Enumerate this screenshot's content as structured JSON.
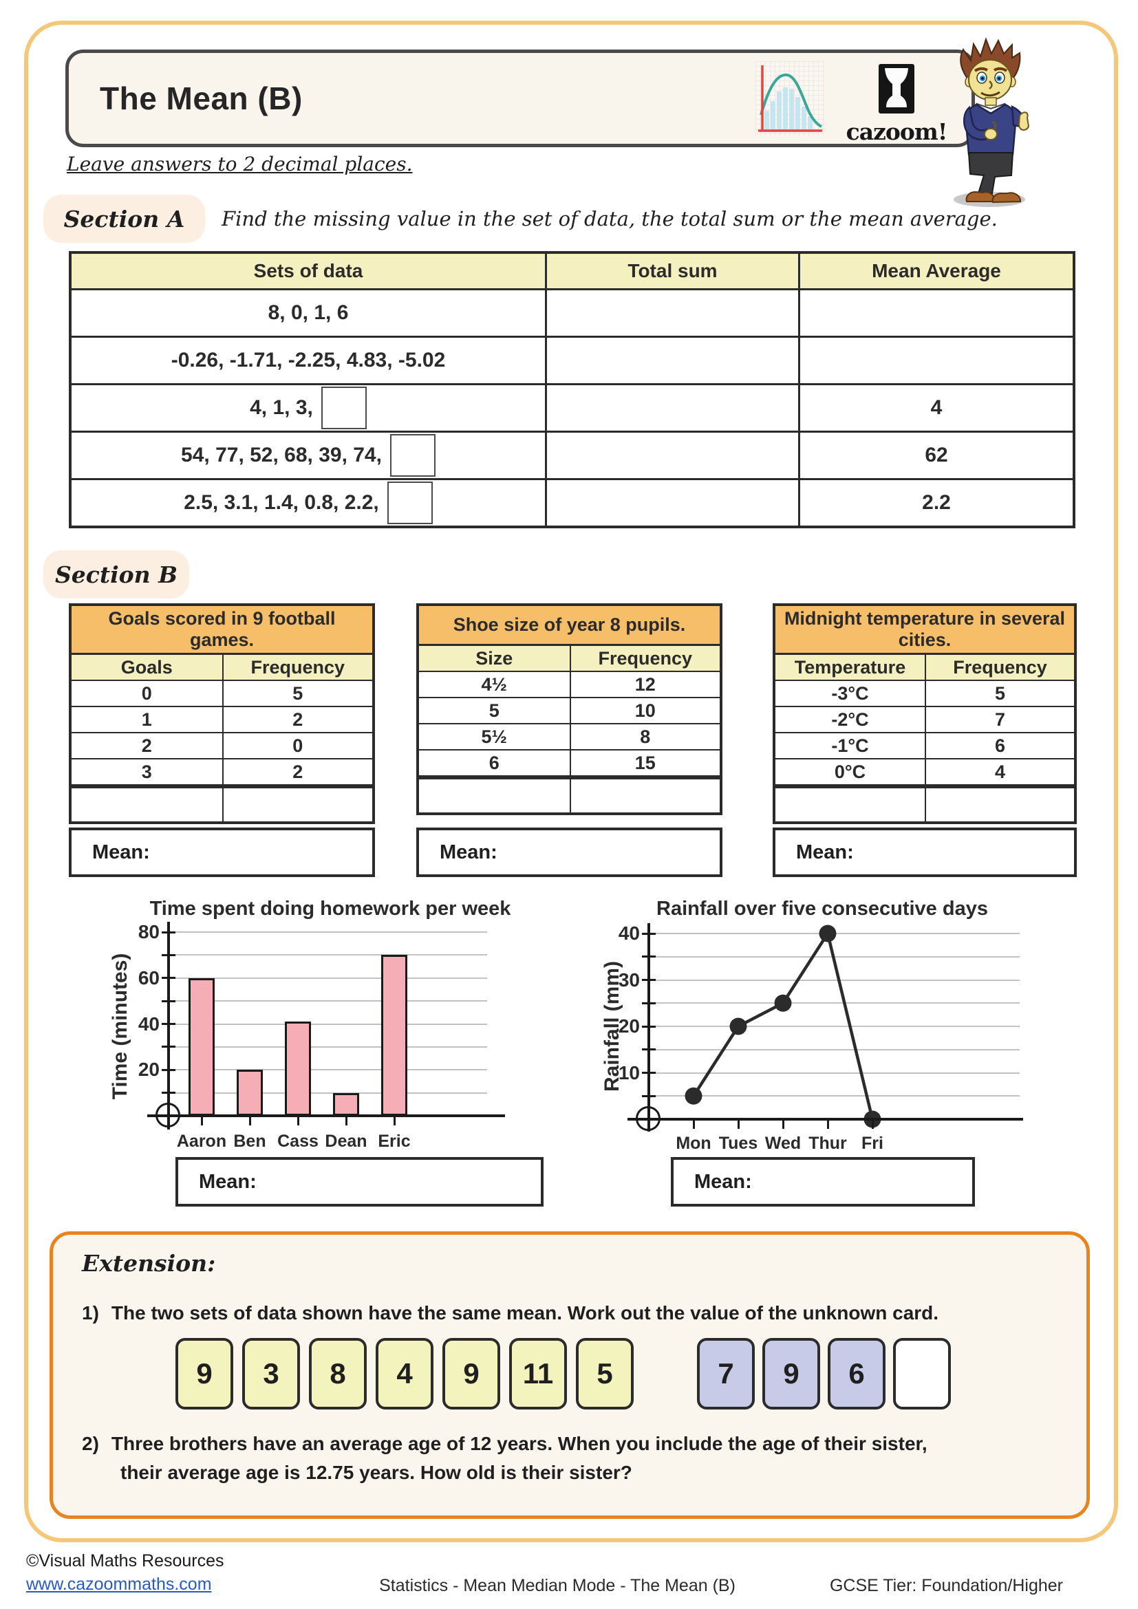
{
  "header": {
    "title": "The Mean (B)",
    "logo_text": "cazoom!"
  },
  "note": "Leave answers to 2 decimal places.",
  "section_a": {
    "label": "Section A",
    "instruction": "Find the missing value in the set of data, the total sum or the mean average.",
    "columns": [
      "Sets of data",
      "Total sum",
      "Mean Average"
    ],
    "rows": [
      {
        "set": "8, 0, 1, 6",
        "answer_box": false,
        "total_sum": "",
        "mean": ""
      },
      {
        "set": "-0.26, -1.71, -2.25, 4.83, -5.02",
        "answer_box": false,
        "total_sum": "",
        "mean": ""
      },
      {
        "set": "4, 1, 3,",
        "answer_box": true,
        "total_sum": "",
        "mean": "4"
      },
      {
        "set": "54, 77, 52, 68, 39, 74,",
        "answer_box": true,
        "total_sum": "",
        "mean": "62"
      },
      {
        "set": "2.5, 3.1, 1.4, 0.8, 2.2,",
        "answer_box": true,
        "total_sum": "",
        "mean": "2.2"
      }
    ]
  },
  "section_b": {
    "label": "Section B",
    "mean_label": "Mean:",
    "tables": [
      {
        "title": "Goals scored in 9 football games.",
        "columns": [
          "Goals",
          "Frequency"
        ],
        "rows": [
          [
            "0",
            "5"
          ],
          [
            "1",
            "2"
          ],
          [
            "2",
            "0"
          ],
          [
            "3",
            "2"
          ]
        ]
      },
      {
        "title": "Shoe size of year 8 pupils.",
        "columns": [
          "Size",
          "Frequency"
        ],
        "rows": [
          [
            "4½",
            "12"
          ],
          [
            "5",
            "10"
          ],
          [
            "5½",
            "8"
          ],
          [
            "6",
            "15"
          ]
        ]
      },
      {
        "title": "Midnight temperature in several cities.",
        "columns": [
          "Temperature",
          "Frequency"
        ],
        "rows": [
          [
            "-3°C",
            "5"
          ],
          [
            "-2°C",
            "7"
          ],
          [
            "-1°C",
            "6"
          ],
          [
            "0°C",
            "4"
          ]
        ]
      }
    ]
  },
  "chart_data": [
    {
      "type": "bar",
      "title": "Time spent doing homework per week",
      "ylabel": "Time (minutes)",
      "categories": [
        "Aaron",
        "Ben",
        "Cass",
        "Dean",
        "Eric"
      ],
      "values": [
        60,
        20,
        41,
        10,
        70
      ],
      "ylim": [
        0,
        80
      ],
      "ytick_step": 10,
      "ytick_labels": [
        20,
        40,
        60,
        80
      ],
      "grid": true,
      "bar_color": "#f5aeb5",
      "mean_label": "Mean:"
    },
    {
      "type": "line",
      "title": "Rainfall over five consecutive days",
      "ylabel": "Rainfall (mm)",
      "x": [
        "Mon",
        "Tues",
        "Wed",
        "Thur",
        "Fri"
      ],
      "values": [
        5,
        20,
        25,
        40,
        0
      ],
      "ylim": [
        0,
        40
      ],
      "ytick_step": 5,
      "ytick_labels": [
        10,
        20,
        30,
        40
      ],
      "grid": true,
      "line_color": "#2b2b2b",
      "mean_label": "Mean:"
    }
  ],
  "extension": {
    "label": "Extension:",
    "q1_number": "1)",
    "q1_text": "The two sets of data shown have the same mean. Work out the value of the unknown card.",
    "cards_set1": [
      "9",
      "3",
      "8",
      "4",
      "9",
      "11",
      "5"
    ],
    "cards_set2": [
      "7",
      "9",
      "6"
    ],
    "unknown_card": "",
    "q2_number": "2)",
    "q2_line1": "Three brothers have an average age of 12 years. When you include the age of their sister,",
    "q2_line2": "their average age is 12.75 years. How old is their sister?"
  },
  "footer": {
    "copyright": "©Visual Maths Resources",
    "website": "www.cazoommaths.com",
    "center": "Statistics - Mean Median Mode - The Mean (B)",
    "right": "GCSE Tier: Foundation/Higher"
  },
  "colors": {
    "frame": "#f4c878",
    "table_header_bg": "#f4f0c0",
    "table_title_bg": "#f7be6a",
    "section_pill_bg": "#fcefe2",
    "bar_fill": "#f5aeb5",
    "card_yellow": "#f3f3bd",
    "card_lavender": "#c7cbe8",
    "extension_border": "#e8831f",
    "link_blue": "#2b59c3"
  }
}
